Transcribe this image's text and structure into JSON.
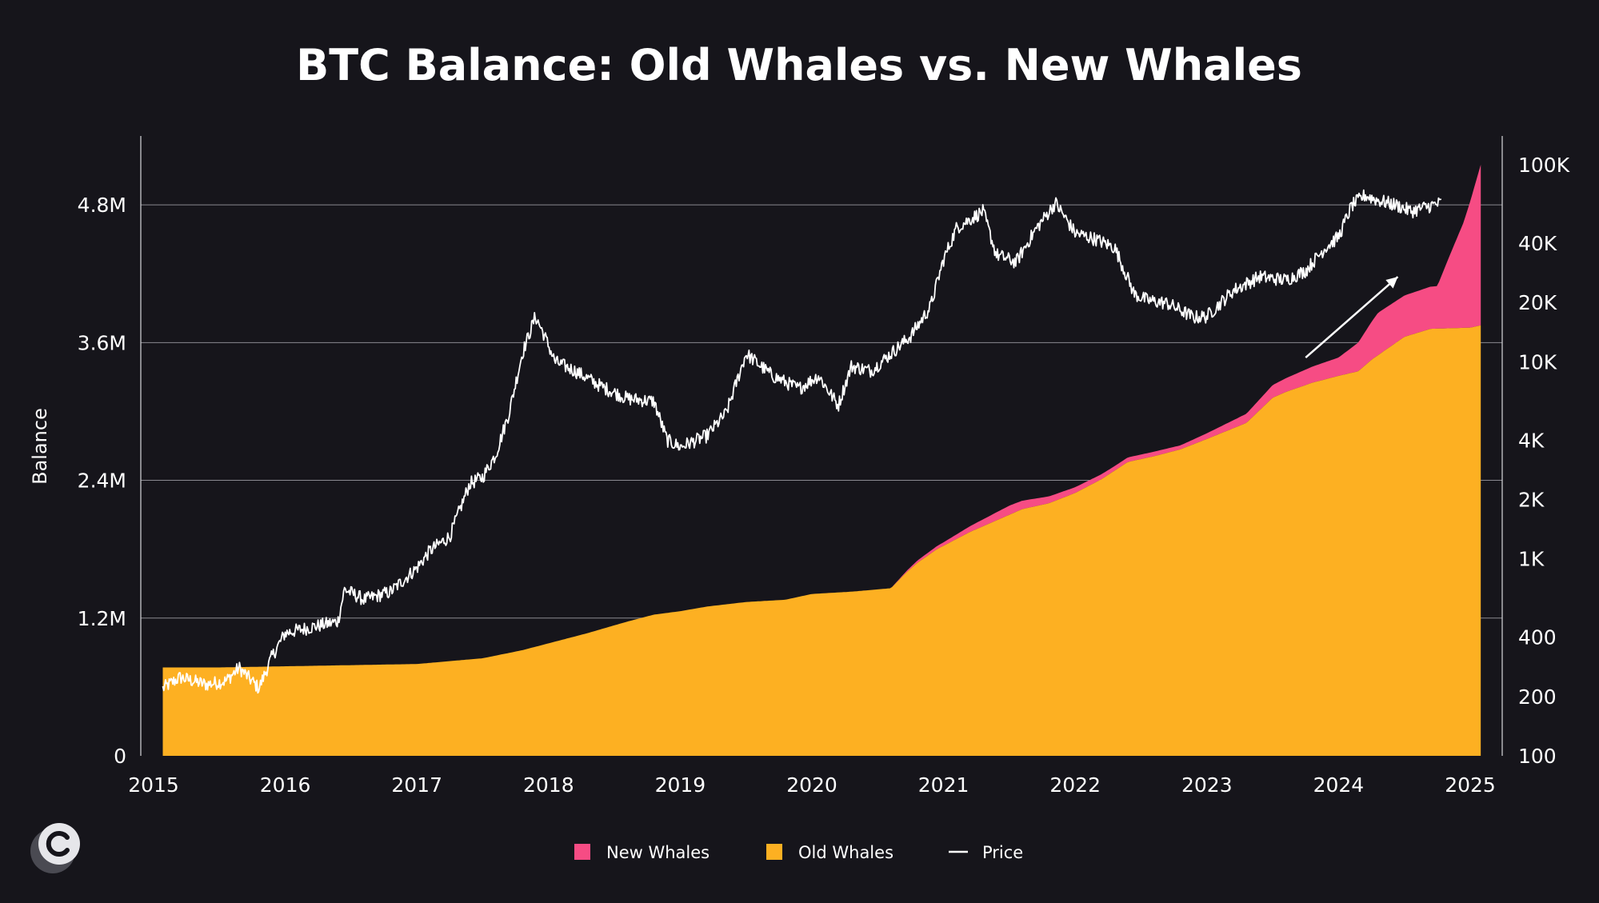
{
  "chart_data": {
    "type": "area",
    "title": "BTC Balance: Old Whales vs. New Whales",
    "ylabel": "Balance",
    "ylim": [
      0,
      5400000
    ],
    "y_ticks": [
      {
        "value": 0,
        "label": "0"
      },
      {
        "value": 1200000,
        "label": "1.2M"
      },
      {
        "value": 2400000,
        "label": "2.4M"
      },
      {
        "value": 3600000,
        "label": "3.6M"
      },
      {
        "value": 4800000,
        "label": "4.8M"
      }
    ],
    "y2_scale": "log",
    "y2lim": [
      100,
      140000
    ],
    "y2_ticks": [
      {
        "value": 100,
        "label": "100"
      },
      {
        "value": 200,
        "label": "200"
      },
      {
        "value": 400,
        "label": "400"
      },
      {
        "value": 1000,
        "label": "1K"
      },
      {
        "value": 2000,
        "label": "2K"
      },
      {
        "value": 4000,
        "label": "4K"
      },
      {
        "value": 10000,
        "label": "10K"
      },
      {
        "value": 20000,
        "label": "20K"
      },
      {
        "value": 40000,
        "label": "40K"
      },
      {
        "value": 100000,
        "label": "100K"
      }
    ],
    "xlim": [
      2015,
      2025
    ],
    "x_ticks": [
      "2015",
      "2016",
      "2017",
      "2018",
      "2019",
      "2020",
      "2021",
      "2022",
      "2023",
      "2024",
      "2025"
    ],
    "grid": "horizontal",
    "legend": {
      "placement": "bottom-center",
      "items": [
        {
          "name": "New Whales",
          "color": "#f64c84",
          "marker": "square"
        },
        {
          "name": "Old Whales",
          "color": "#fdb022",
          "marker": "square"
        },
        {
          "name": "Price",
          "color": "#ffffff",
          "marker": "line"
        }
      ]
    },
    "series": [
      {
        "name": "Old Whales",
        "color": "#fdb022",
        "x": [
          2015.07,
          2015.5,
          2016.0,
          2016.5,
          2017.0,
          2017.5,
          2017.8,
          2018.0,
          2018.3,
          2018.6,
          2018.8,
          2019.0,
          2019.2,
          2019.5,
          2019.8,
          2020.0,
          2020.3,
          2020.6,
          2020.72,
          2020.8,
          2020.95,
          2021.2,
          2021.4,
          2021.6,
          2021.8,
          2022.0,
          2022.2,
          2022.4,
          2022.6,
          2022.8,
          2023.0,
          2023.3,
          2023.5,
          2023.6,
          2023.8,
          2024.0,
          2024.15,
          2024.25,
          2024.5,
          2024.7,
          2025.0,
          2025.08
        ],
        "values": [
          770000,
          770000,
          780000,
          790000,
          800000,
          850000,
          920000,
          980000,
          1070000,
          1170000,
          1230000,
          1260000,
          1300000,
          1340000,
          1360000,
          1410000,
          1430000,
          1460000,
          1600000,
          1680000,
          1800000,
          1950000,
          2050000,
          2150000,
          2200000,
          2290000,
          2410000,
          2560000,
          2610000,
          2670000,
          2760000,
          2900000,
          3120000,
          3170000,
          3250000,
          3310000,
          3350000,
          3450000,
          3650000,
          3720000,
          3730000,
          3750000
        ]
      },
      {
        "name": "New Whales",
        "color": "#f64c84",
        "x": [
          2015.07,
          2020.6,
          2020.8,
          2021.0,
          2021.3,
          2021.5,
          2021.8,
          2022.0,
          2022.3,
          2022.6,
          2022.8,
          2023.0,
          2023.3,
          2023.5,
          2023.8,
          2024.0,
          2024.15,
          2024.3,
          2024.5,
          2024.75,
          2024.85,
          2024.95,
          2025.0,
          2025.08
        ],
        "values": [
          0,
          0,
          20000,
          30000,
          60000,
          80000,
          60000,
          50000,
          40000,
          40000,
          35000,
          50000,
          80000,
          110000,
          140000,
          160000,
          250000,
          370000,
          360000,
          370000,
          650000,
          920000,
          1100000,
          1400000
        ]
      },
      {
        "name": "Price",
        "color": "#ffffff",
        "axis": "right",
        "x": [
          2015.07,
          2015.2,
          2015.4,
          2015.55,
          2015.65,
          2015.8,
          2015.9,
          2016.0,
          2016.2,
          2016.4,
          2016.45,
          2016.6,
          2016.8,
          2017.0,
          2017.1,
          2017.25,
          2017.4,
          2017.5,
          2017.6,
          2017.7,
          2017.8,
          2017.9,
          2017.96,
          2018.05,
          2018.2,
          2018.4,
          2018.6,
          2018.8,
          2018.9,
          2019.0,
          2019.2,
          2019.35,
          2019.5,
          2019.7,
          2019.9,
          2020.05,
          2020.2,
          2020.3,
          2020.45,
          2020.6,
          2020.75,
          2020.9,
          2021.0,
          2021.1,
          2021.3,
          2021.4,
          2021.55,
          2021.7,
          2021.85,
          2022.0,
          2022.15,
          2022.3,
          2022.45,
          2022.55,
          2022.7,
          2022.9,
          2023.0,
          2023.2,
          2023.4,
          2023.6,
          2023.75,
          2023.9,
          2024.0,
          2024.1,
          2024.2,
          2024.3,
          2024.45,
          2024.55,
          2024.7,
          2024.78
        ],
        "values": [
          220,
          250,
          230,
          240,
          280,
          220,
          320,
          420,
          450,
          480,
          700,
          620,
          680,
          900,
          1100,
          1300,
          2400,
          2600,
          3400,
          5500,
          11000,
          17000,
          14000,
          10000,
          9000,
          7500,
          6500,
          6300,
          4000,
          3700,
          4200,
          5500,
          11000,
          8500,
          7300,
          8500,
          6000,
          9500,
          9000,
          11000,
          13500,
          19000,
          33000,
          48000,
          58000,
          35000,
          32000,
          47000,
          64000,
          45000,
          42000,
          38000,
          22000,
          20500,
          19800,
          16800,
          17000,
          23000,
          27000,
          26000,
          29000,
          38000,
          43000,
          62000,
          70000,
          66000,
          62000,
          58000,
          62000,
          64000
        ]
      }
    ],
    "annotations": [
      {
        "type": "arrow",
        "from": [
          2023.75,
          10500
        ],
        "to": [
          2024.45,
          27000
        ],
        "color": "#ffffff"
      }
    ]
  }
}
